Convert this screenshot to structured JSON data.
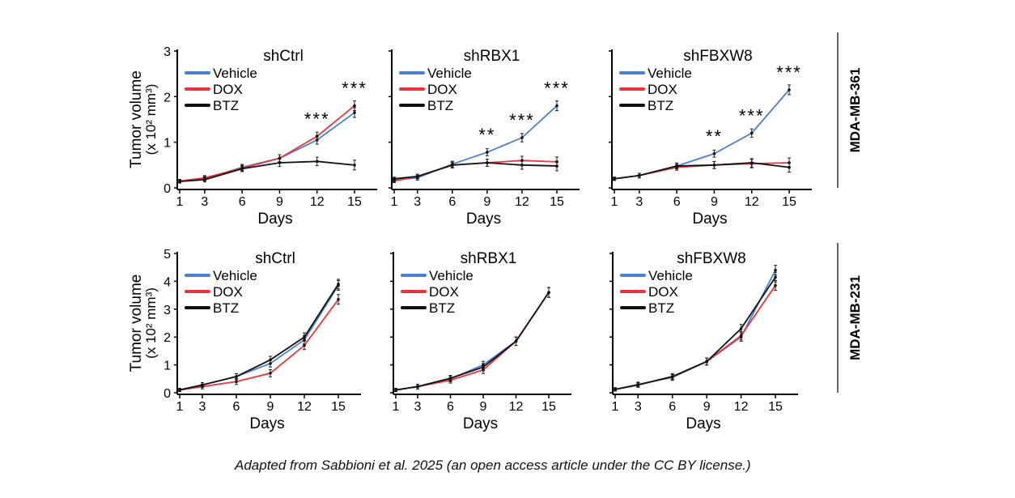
{
  "caption": "Adapted from Sabbioni et al. 2025 (an open access article under the CC BY license.)",
  "colors": {
    "Vehicle": "#4a7fcf",
    "DOX": "#e8343a",
    "BTZ": "#111111"
  },
  "chart_data": [
    {
      "type": "line",
      "row_label": "MDA-MB-361",
      "title": "shCtrl",
      "xlabel": "Days",
      "ylabel": "Tumor volume (x 10² mm³)",
      "ylim": [
        0,
        3
      ],
      "yticks": [
        0,
        1,
        2,
        3
      ],
      "x": [
        1,
        3,
        6,
        9,
        12,
        15
      ],
      "legend": "top-left",
      "series": [
        {
          "name": "Vehicle",
          "values": [
            0.15,
            0.2,
            0.45,
            0.65,
            1.05,
            1.65
          ]
        },
        {
          "name": "DOX",
          "values": [
            0.15,
            0.22,
            0.43,
            0.65,
            1.13,
            1.8
          ]
        },
        {
          "name": "BTZ",
          "values": [
            0.14,
            0.18,
            0.42,
            0.55,
            0.58,
            0.5
          ]
        }
      ],
      "annotations": [
        {
          "x": 12,
          "text": "***"
        },
        {
          "x": 15,
          "text": "***"
        }
      ]
    },
    {
      "type": "line",
      "row_label": "MDA-MB-361",
      "title": "shRBX1",
      "xlabel": "Days",
      "ylim": [
        0,
        3
      ],
      "x": [
        1,
        3,
        6,
        9,
        12,
        15
      ],
      "legend": "top-left",
      "series": [
        {
          "name": "Vehicle",
          "values": [
            0.18,
            0.22,
            0.52,
            0.78,
            1.1,
            1.8
          ]
        },
        {
          "name": "DOX",
          "values": [
            0.15,
            0.25,
            0.5,
            0.55,
            0.6,
            0.57
          ]
        },
        {
          "name": "BTZ",
          "values": [
            0.2,
            0.25,
            0.5,
            0.55,
            0.5,
            0.48
          ]
        }
      ],
      "annotations": [
        {
          "x": 9,
          "text": "**"
        },
        {
          "x": 12,
          "text": "***"
        },
        {
          "x": 15,
          "text": "***"
        }
      ]
    },
    {
      "type": "line",
      "row_label": "MDA-MB-361",
      "title": "shFBXW8",
      "xlabel": "Days",
      "ylim": [
        0,
        3
      ],
      "x": [
        1,
        3,
        6,
        9,
        12,
        15
      ],
      "legend": "top-left",
      "series": [
        {
          "name": "Vehicle",
          "values": [
            0.2,
            0.27,
            0.48,
            0.75,
            1.2,
            2.15
          ]
        },
        {
          "name": "DOX",
          "values": [
            0.2,
            0.27,
            0.45,
            0.5,
            0.53,
            0.55
          ]
        },
        {
          "name": "BTZ",
          "values": [
            0.2,
            0.27,
            0.48,
            0.5,
            0.55,
            0.45
          ]
        }
      ],
      "annotations": [
        {
          "x": 9,
          "text": "**"
        },
        {
          "x": 12,
          "text": "***"
        },
        {
          "x": 15,
          "text": "***"
        }
      ]
    },
    {
      "type": "line",
      "row_label": "MDA-MB-231",
      "title": "shCtrl",
      "xlabel": "Days",
      "ylabel": "Tumor volume (x 10² mm³)",
      "ylim": [
        0,
        5
      ],
      "yticks": [
        0,
        1,
        2,
        3,
        4,
        5
      ],
      "x": [
        1,
        3,
        6,
        9,
        12,
        15
      ],
      "legend": "top-left",
      "series": [
        {
          "name": "Vehicle",
          "values": [
            0.1,
            0.28,
            0.58,
            1.05,
            1.9,
            3.85
          ]
        },
        {
          "name": "DOX",
          "values": [
            0.1,
            0.22,
            0.4,
            0.7,
            1.7,
            3.35
          ]
        },
        {
          "name": "BTZ",
          "values": [
            0.1,
            0.28,
            0.58,
            1.18,
            2.0,
            3.9
          ]
        }
      ],
      "annotations": []
    },
    {
      "type": "line",
      "row_label": "MDA-MB-231",
      "title": "shRBX1",
      "xlabel": "Days",
      "ylim": [
        0,
        5
      ],
      "x": [
        1,
        3,
        6,
        9,
        12,
        15
      ],
      "legend": "top-left",
      "series": [
        {
          "name": "Vehicle",
          "values": [
            0.1,
            0.22,
            0.5,
            1.0,
            1.85,
            3.6
          ]
        },
        {
          "name": "DOX",
          "values": [
            0.1,
            0.22,
            0.45,
            0.82,
            1.85,
            3.6
          ]
        },
        {
          "name": "BTZ",
          "values": [
            0.1,
            0.22,
            0.52,
            0.92,
            1.85,
            3.6
          ]
        }
      ],
      "annotations": []
    },
    {
      "type": "line",
      "row_label": "MDA-MB-231",
      "title": "shFBXW8",
      "xlabel": "Days",
      "ylim": [
        0,
        5
      ],
      "x": [
        1,
        3,
        6,
        9,
        12,
        15
      ],
      "legend": "top-left",
      "series": [
        {
          "name": "Vehicle",
          "values": [
            0.12,
            0.3,
            0.55,
            1.12,
            2.0,
            4.4
          ]
        },
        {
          "name": "DOX",
          "values": [
            0.12,
            0.28,
            0.58,
            1.12,
            2.05,
            3.85
          ]
        },
        {
          "name": "BTZ",
          "values": [
            0.12,
            0.28,
            0.58,
            1.12,
            2.3,
            4.15
          ]
        }
      ],
      "annotations": []
    }
  ]
}
